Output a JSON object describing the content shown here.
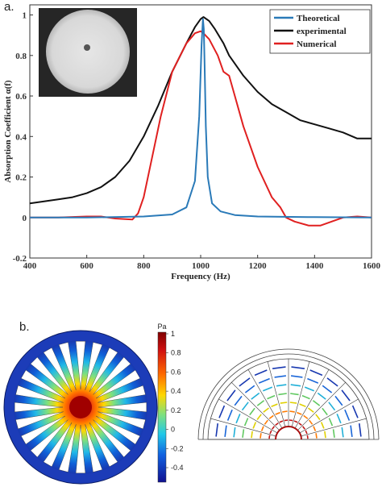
{
  "panel_a_label": "a.",
  "panel_b_label": "b.",
  "colorbar": {
    "unit": "Pa",
    "ticks": [
      "1",
      "0.8",
      "0.6",
      "0.4",
      "0.2",
      "0",
      "-0.2",
      "-0.4"
    ]
  },
  "chart_data": {
    "type": "line",
    "xlabel": "Frequency (Hz)",
    "ylabel": "Absorption Coefficient α(f)",
    "xlim": [
      400,
      1600
    ],
    "ylim": [
      -0.2,
      1.05
    ],
    "xticks": [
      400,
      600,
      800,
      1000,
      1200,
      1400,
      1600
    ],
    "yticks": [
      -0.2,
      0,
      0.2,
      0.4,
      0.6,
      0.8,
      1
    ],
    "grid": false,
    "legend_position": "top-right",
    "series": [
      {
        "name": "Theoretical",
        "color": "#2a7ab8",
        "x": [
          400,
          600,
          800,
          900,
          950,
          980,
          995,
          1003,
          1008,
          1011,
          1014,
          1018,
          1025,
          1040,
          1070,
          1120,
          1200,
          1400,
          1600
        ],
        "y": [
          0.0,
          0.0,
          0.005,
          0.015,
          0.05,
          0.18,
          0.5,
          0.85,
          0.98,
          0.93,
          0.75,
          0.45,
          0.2,
          0.07,
          0.03,
          0.012,
          0.005,
          0.002,
          0.0
        ]
      },
      {
        "name": "experimental",
        "color": "#111111",
        "x": [
          400,
          450,
          500,
          550,
          600,
          650,
          700,
          750,
          800,
          850,
          900,
          950,
          980,
          1000,
          1010,
          1030,
          1050,
          1080,
          1100,
          1150,
          1200,
          1250,
          1300,
          1350,
          1400,
          1450,
          1500,
          1550,
          1600
        ],
        "y": [
          0.07,
          0.08,
          0.09,
          0.1,
          0.12,
          0.15,
          0.2,
          0.28,
          0.4,
          0.55,
          0.72,
          0.86,
          0.94,
          0.98,
          0.99,
          0.97,
          0.93,
          0.86,
          0.8,
          0.7,
          0.62,
          0.56,
          0.52,
          0.48,
          0.46,
          0.44,
          0.42,
          0.39,
          0.39
        ]
      },
      {
        "name": "Numerical",
        "color": "#e02020",
        "x": [
          400,
          500,
          600,
          650,
          700,
          760,
          780,
          800,
          830,
          860,
          900,
          950,
          980,
          1000,
          1010,
          1030,
          1060,
          1080,
          1100,
          1120,
          1150,
          1200,
          1250,
          1280,
          1300,
          1330,
          1380,
          1420,
          1460,
          1500,
          1550,
          1600
        ],
        "y": [
          0.0,
          0.0,
          0.005,
          0.005,
          -0.005,
          -0.01,
          0.02,
          0.1,
          0.3,
          0.5,
          0.72,
          0.86,
          0.91,
          0.92,
          0.91,
          0.88,
          0.8,
          0.72,
          0.7,
          0.6,
          0.45,
          0.25,
          0.1,
          0.05,
          0.0,
          -0.02,
          -0.04,
          -0.04,
          -0.02,
          0.0,
          0.005,
          0.0
        ]
      }
    ]
  }
}
